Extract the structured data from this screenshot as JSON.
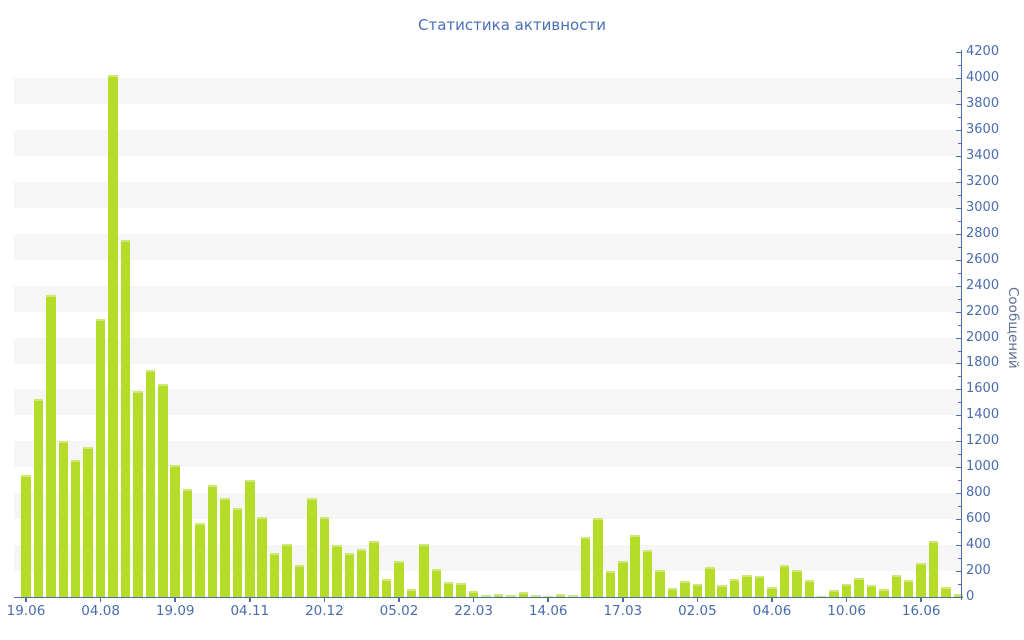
{
  "title": "Статистика активности",
  "chart_data": {
    "type": "bar",
    "title": "Статистика активности",
    "xlabel": "",
    "ylabel": "Сообщений",
    "ylim": [
      0,
      4200
    ],
    "y_major_step": 200,
    "y_minor_step": 100,
    "grid": "alternating horizontal bands",
    "legend": "none",
    "y_axis_side": "right",
    "y_tick_labels": [
      "0",
      "200",
      "400",
      "600",
      "800",
      "1000",
      "1200",
      "1400",
      "1600",
      "1800",
      "2000",
      "2200",
      "2400",
      "2600",
      "2800",
      "3000",
      "3200",
      "3400",
      "3600",
      "3800",
      "4000",
      "4200"
    ],
    "x_tick_labels": [
      "19.06",
      "04.08",
      "19.09",
      "04.11",
      "20.12",
      "05.02",
      "22.03",
      "14.06",
      "17.03",
      "02.05",
      "04.06",
      "10.06",
      "16.06"
    ],
    "x_tick_bar_indices": [
      0,
      6,
      12,
      18,
      24,
      30,
      36,
      42,
      48,
      54,
      60,
      66,
      72
    ],
    "values": [
      940,
      1530,
      2330,
      1200,
      1060,
      1160,
      2140,
      4020,
      2750,
      1590,
      1750,
      1640,
      1020,
      830,
      570,
      860,
      760,
      690,
      900,
      620,
      340,
      410,
      250,
      760,
      620,
      400,
      340,
      370,
      430,
      140,
      280,
      60,
      410,
      215,
      115,
      110,
      50,
      15,
      25,
      15,
      40,
      15,
      10,
      20,
      15,
      460,
      610,
      200,
      280,
      480,
      360,
      210,
      70,
      120,
      100,
      230,
      90,
      140,
      170,
      160,
      80,
      250,
      210,
      130,
      10,
      55,
      100,
      150,
      90,
      60,
      170,
      130,
      260,
      430,
      80,
      20
    ],
    "colors": {
      "bar_fill": "#b5dc29",
      "bar_top_highlight": "#cde876",
      "band_gray": "#f6f6f7",
      "axis_line": "#4e6cab",
      "axis_text": "#4a6cad",
      "title_text": "#4a6fb8",
      "y_axis_title_text": "#5d6f94",
      "background": "#ffffff"
    }
  }
}
